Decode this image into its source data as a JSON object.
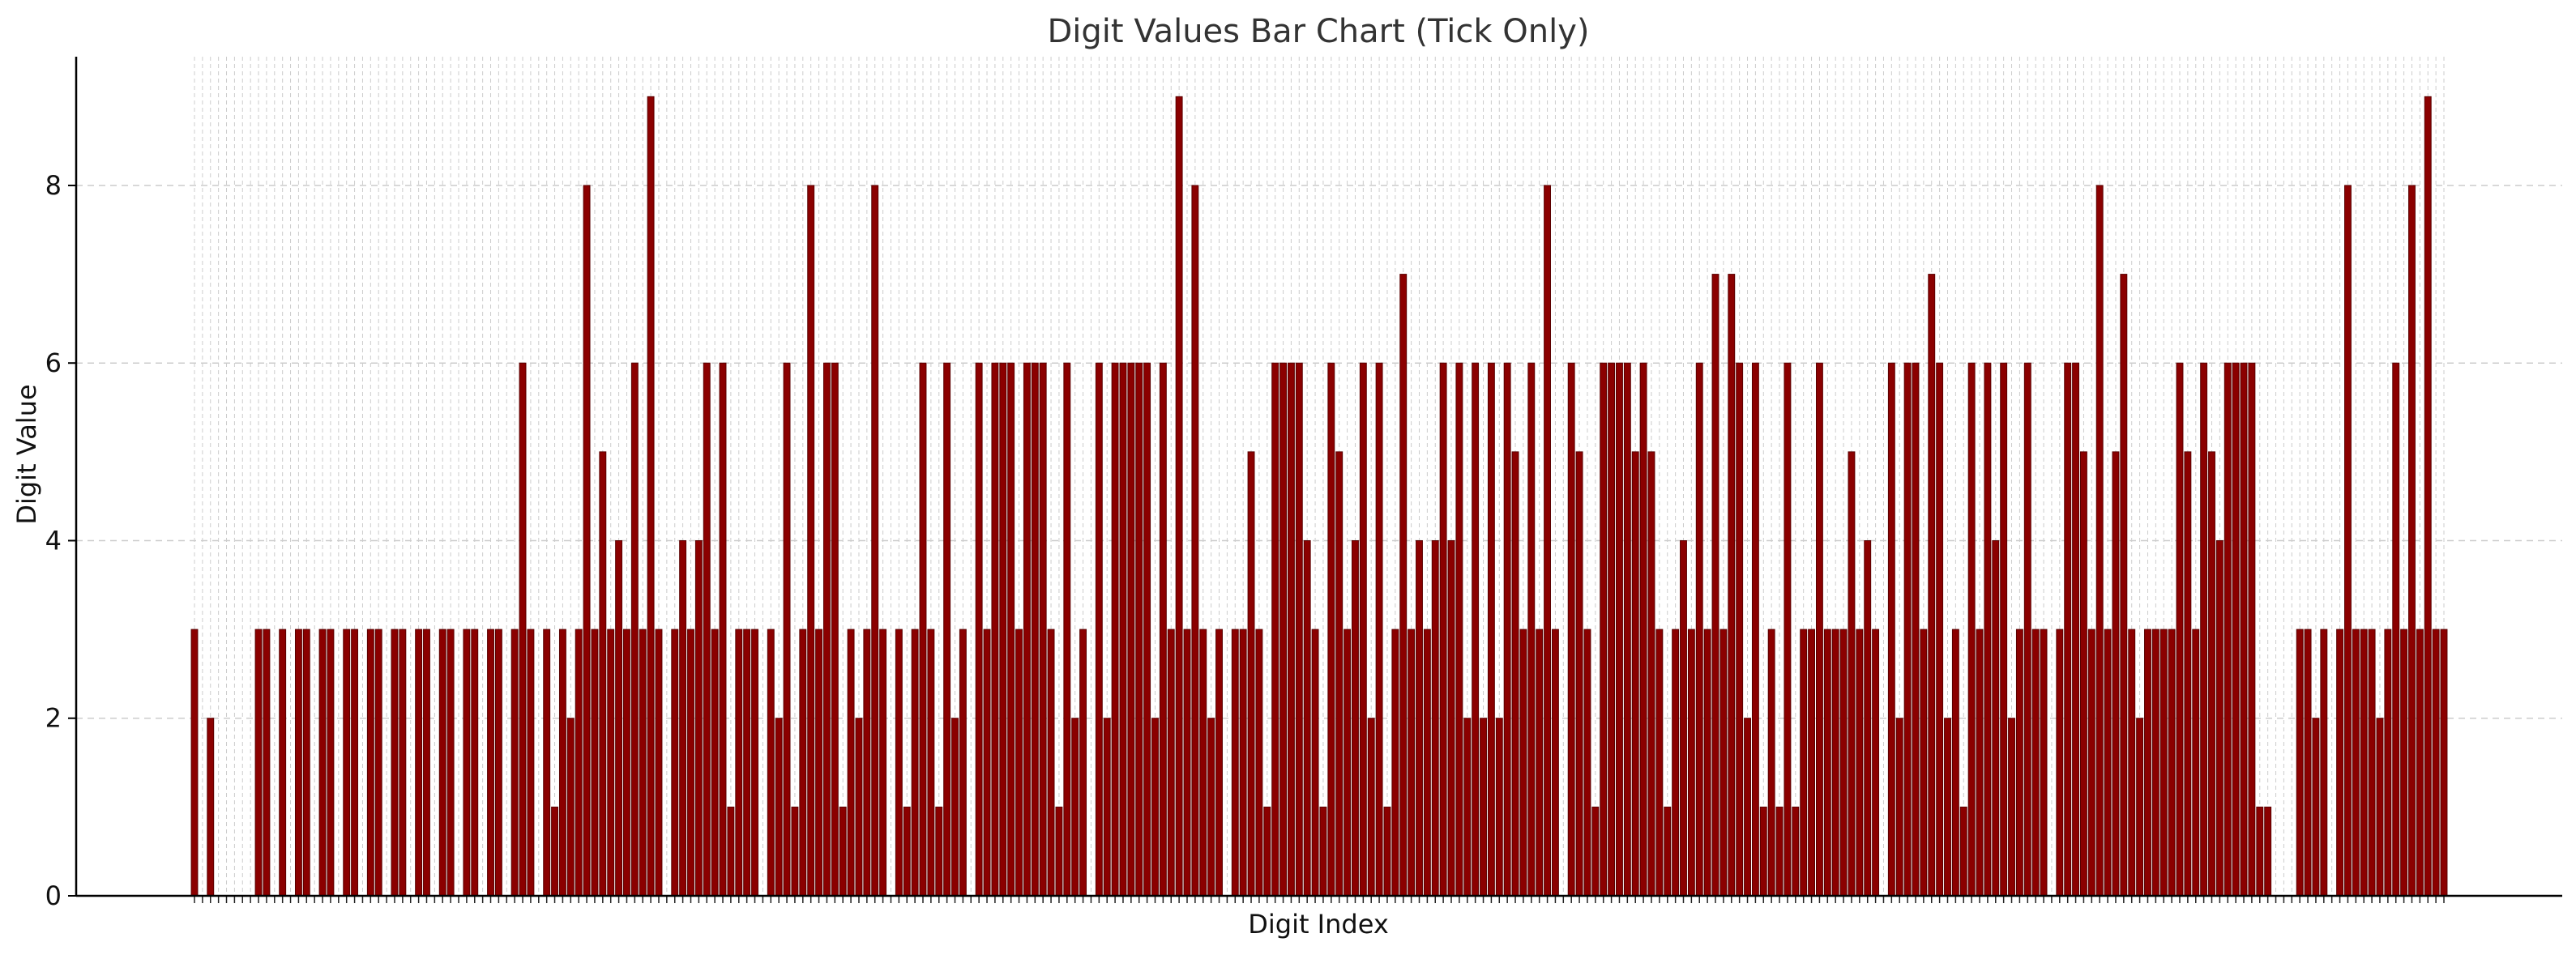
{
  "chart_data": {
    "type": "bar",
    "title": "Digit Values Bar Chart (Tick Only)",
    "xlabel": "Digit Index",
    "ylabel": "Digit Value",
    "ylim": [
      0,
      9.45
    ],
    "yticks": [
      0,
      2,
      4,
      6,
      8
    ],
    "grid": true,
    "x_tick_labels": "none",
    "bar_color": "#8B0000",
    "bar_edge_color": "#5a0000",
    "grid_color": "#cccccc",
    "values": [
      3,
      0,
      2,
      0,
      0,
      0,
      0,
      0,
      3,
      3,
      0,
      3,
      0,
      3,
      3,
      0,
      3,
      3,
      0,
      3,
      3,
      0,
      3,
      3,
      0,
      3,
      3,
      0,
      3,
      3,
      0,
      3,
      3,
      0,
      3,
      3,
      0,
      3,
      3,
      0,
      3,
      6,
      3,
      0,
      3,
      1,
      3,
      2,
      3,
      8,
      3,
      5,
      3,
      4,
      3,
      6,
      3,
      9,
      3,
      0,
      3,
      4,
      3,
      4,
      6,
      3,
      6,
      1,
      3,
      3,
      3,
      0,
      3,
      2,
      6,
      1,
      3,
      8,
      3,
      6,
      6,
      1,
      3,
      2,
      3,
      8,
      3,
      0,
      3,
      1,
      3,
      6,
      3,
      1,
      6,
      2,
      3,
      0,
      6,
      3,
      6,
      6,
      6,
      3,
      6,
      6,
      6,
      3,
      1,
      6,
      2,
      3,
      0,
      6,
      2,
      6,
      6,
      6,
      6,
      6,
      2,
      6,
      3,
      9,
      3,
      8,
      3,
      2,
      3,
      0,
      3,
      3,
      5,
      3,
      1,
      6,
      6,
      6,
      6,
      4,
      3,
      1,
      6,
      5,
      3,
      4,
      6,
      2,
      6,
      1,
      3,
      7,
      3,
      4,
      3,
      4,
      6,
      4,
      6,
      2,
      6,
      2,
      6,
      2,
      6,
      5,
      3,
      6,
      3,
      8,
      3,
      0,
      6,
      5,
      3,
      1,
      6,
      6,
      6,
      6,
      5,
      6,
      5,
      3,
      1,
      3,
      4,
      3,
      6,
      3,
      7,
      3,
      7,
      6,
      2,
      6,
      1,
      3,
      1,
      6,
      1,
      3,
      3,
      6,
      3,
      3,
      3,
      5,
      3,
      4,
      3,
      0,
      6,
      2,
      6,
      6,
      3,
      7,
      6,
      2,
      3,
      1,
      6,
      3,
      6,
      4,
      6,
      2,
      3,
      6,
      3,
      3,
      0,
      3,
      6,
      6,
      5,
      3,
      8,
      3,
      5,
      7,
      3,
      2,
      3,
      3,
      3,
      3,
      6,
      5,
      3,
      6,
      5,
      4,
      6,
      6,
      6,
      6,
      1,
      1,
      0,
      0,
      0,
      3,
      3,
      2,
      3,
      0,
      3,
      8,
      3,
      3,
      3,
      2,
      3,
      6,
      3,
      8,
      3,
      9,
      3,
      3
    ]
  }
}
